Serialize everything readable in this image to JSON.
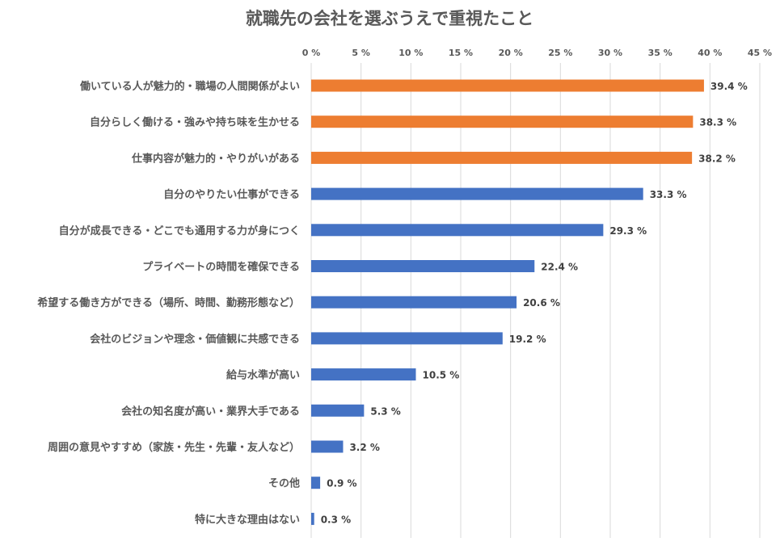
{
  "chart_data": {
    "type": "bar",
    "orientation": "horizontal",
    "title": "就職先の会社を選ぶうえで重視たこと",
    "xlim": [
      0,
      45
    ],
    "x_ticks": [
      {
        "value": 0,
        "label": "0 %"
      },
      {
        "value": 5,
        "label": "5 %"
      },
      {
        "value": 10,
        "label": "10 %"
      },
      {
        "value": 15,
        "label": "15 %"
      },
      {
        "value": 20,
        "label": "20 %"
      },
      {
        "value": 25,
        "label": "25 %"
      },
      {
        "value": 30,
        "label": "30 %"
      },
      {
        "value": 35,
        "label": "35 %"
      },
      {
        "value": 40,
        "label": "40 %"
      },
      {
        "value": 45,
        "label": "45 %"
      }
    ],
    "axis_position": "top",
    "grid": true,
    "colors": {
      "highlight": "#ed7d31",
      "default": "#4472c4"
    },
    "categories": [
      "働いている人が魅力的・職場の人間関係がよい",
      "自分らしく働ける・強みや持ち味を生かせる",
      "仕事内容が魅力的・やりがいがある",
      "自分のやりたい仕事ができる",
      "自分が成長できる・どこでも通用する力が身につく",
      "プライベートの時間を確保できる",
      "希望する働き方ができる（場所、時間、勤務形態など）",
      "会社のビジョンや理念・価値観に共感できる",
      "給与水準が高い",
      "会社の知名度が高い・業界大手である",
      "周囲の意見やすすめ（家族・先生・先輩・友人など）",
      "その他",
      "特に大きな理由はない"
    ],
    "values": [
      39.4,
      38.3,
      38.2,
      33.3,
      29.3,
      22.4,
      20.6,
      19.2,
      10.5,
      5.3,
      3.2,
      0.9,
      0.3
    ],
    "value_labels": [
      "39.4 %",
      "38.3 %",
      "38.2 %",
      "33.3 %",
      "29.3 %",
      "22.4 %",
      "20.6 %",
      "19.2 %",
      "10.5 %",
      "5.3 %",
      "3.2 %",
      "0.9 %",
      "0.3 %"
    ],
    "highlighted": [
      true,
      true,
      true,
      false,
      false,
      false,
      false,
      false,
      false,
      false,
      false,
      false,
      false
    ]
  }
}
